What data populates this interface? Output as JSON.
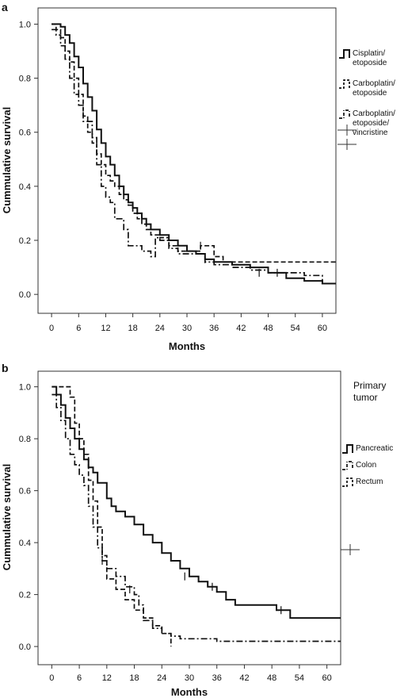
{
  "chart_data": [
    {
      "panel_label": "a",
      "type": "line",
      "step": true,
      "xlabel": "Months",
      "ylabel": "Cummulative survival",
      "xlim": [
        -3,
        63
      ],
      "ylim": [
        -0.07,
        1.06
      ],
      "xticks": [
        0,
        6,
        12,
        18,
        24,
        30,
        36,
        42,
        48,
        54,
        60
      ],
      "yticks": [
        0.0,
        0.2,
        0.4,
        0.6,
        0.8,
        1.0
      ],
      "ytick_labels": [
        "0.0",
        "0.2",
        "0.4",
        "0.6",
        "0.8",
        "1.0"
      ],
      "legend_position": "right",
      "series": [
        {
          "name": "Cisplatin/ etoposide",
          "legend_lines": [
            "Cisplatin/",
            "etoposide"
          ],
          "style": "solid",
          "color": "#111111",
          "points": [
            [
              0,
              1.0
            ],
            [
              2,
              0.99
            ],
            [
              3,
              0.96
            ],
            [
              4,
              0.93
            ],
            [
              5,
              0.88
            ],
            [
              6,
              0.84
            ],
            [
              7,
              0.78
            ],
            [
              8,
              0.73
            ],
            [
              9,
              0.68
            ],
            [
              10,
              0.61
            ],
            [
              11,
              0.56
            ],
            [
              12,
              0.51
            ],
            [
              13,
              0.48
            ],
            [
              14,
              0.44
            ],
            [
              15,
              0.4
            ],
            [
              16,
              0.37
            ],
            [
              17,
              0.34
            ],
            [
              18,
              0.32
            ],
            [
              19,
              0.3
            ],
            [
              20,
              0.28
            ],
            [
              21,
              0.26
            ],
            [
              22,
              0.24
            ],
            [
              24,
              0.22
            ],
            [
              26,
              0.2
            ],
            [
              28,
              0.18
            ],
            [
              30,
              0.16
            ],
            [
              32,
              0.15
            ],
            [
              34,
              0.13
            ],
            [
              36,
              0.12
            ],
            [
              40,
              0.11
            ],
            [
              44,
              0.1
            ],
            [
              48,
              0.08
            ],
            [
              52,
              0.06
            ],
            [
              56,
              0.05
            ],
            [
              60,
              0.04
            ],
            [
              63,
              0.04
            ]
          ],
          "censored": [
            [
              34,
              0.13
            ],
            [
              46,
              0.08
            ]
          ]
        },
        {
          "name": "Carboplatin/ etoposide",
          "legend_lines": [
            "Carboplatin/",
            "etoposide"
          ],
          "style": "dashed",
          "color": "#111111",
          "points": [
            [
              0,
              1.0
            ],
            [
              1,
              0.98
            ],
            [
              2,
              0.95
            ],
            [
              3,
              0.9
            ],
            [
              4,
              0.86
            ],
            [
              5,
              0.8
            ],
            [
              6,
              0.74
            ],
            [
              7,
              0.66
            ],
            [
              8,
              0.6
            ],
            [
              9,
              0.56
            ],
            [
              10,
              0.52
            ],
            [
              11,
              0.48
            ],
            [
              12,
              0.44
            ],
            [
              13,
              0.42
            ],
            [
              14,
              0.4
            ],
            [
              15,
              0.37
            ],
            [
              16,
              0.35
            ],
            [
              17,
              0.33
            ],
            [
              18,
              0.3
            ],
            [
              19,
              0.28
            ],
            [
              20,
              0.26
            ],
            [
              21,
              0.24
            ],
            [
              22,
              0.22
            ],
            [
              24,
              0.21
            ],
            [
              26,
              0.18
            ],
            [
              28,
              0.16
            ],
            [
              33,
              0.18
            ],
            [
              36,
              0.14
            ],
            [
              38,
              0.12
            ],
            [
              63,
              0.12
            ]
          ],
          "censored": [
            [
              33,
              0.18
            ]
          ]
        },
        {
          "name": "Carboplatin/ etoposide/ vincristine",
          "legend_lines": [
            "Carboplatin/",
            "etoposide/",
            "vincristine"
          ],
          "style": "dashdot",
          "color": "#111111",
          "points": [
            [
              0,
              0.98
            ],
            [
              1,
              0.96
            ],
            [
              2,
              0.92
            ],
            [
              3,
              0.87
            ],
            [
              4,
              0.8
            ],
            [
              5,
              0.74
            ],
            [
              6,
              0.7
            ],
            [
              7,
              0.64
            ],
            [
              9,
              0.58
            ],
            [
              10,
              0.48
            ],
            [
              11,
              0.4
            ],
            [
              12,
              0.36
            ],
            [
              13,
              0.34
            ],
            [
              14,
              0.28
            ],
            [
              16,
              0.24
            ],
            [
              17,
              0.18
            ],
            [
              20,
              0.16
            ],
            [
              22,
              0.14
            ],
            [
              23,
              0.21
            ],
            [
              24,
              0.2
            ],
            [
              26,
              0.17
            ],
            [
              28,
              0.15
            ],
            [
              32,
              0.15
            ],
            [
              34,
              0.12
            ],
            [
              36,
              0.11
            ],
            [
              40,
              0.1
            ],
            [
              44,
              0.09
            ],
            [
              48,
              0.08
            ],
            [
              50,
              0.08
            ],
            [
              56,
              0.07
            ],
            [
              60,
              0.04
            ],
            [
              62,
              0.04
            ]
          ],
          "censored": [
            [
              50,
              0.08
            ]
          ]
        }
      ]
    },
    {
      "panel_label": "b",
      "type": "line",
      "step": true,
      "xlabel": "Months",
      "ylabel": "Cummulative survival",
      "xlim": [
        -3,
        63
      ],
      "ylim": [
        -0.07,
        1.06
      ],
      "xticks": [
        0,
        6,
        12,
        18,
        24,
        30,
        36,
        42,
        48,
        54,
        60
      ],
      "yticks": [
        0.0,
        0.2,
        0.4,
        0.6,
        0.8,
        1.0
      ],
      "ytick_labels": [
        "0.0",
        "0.2",
        "0.4",
        "0.6",
        "0.8",
        "1.0"
      ],
      "legend_title_lines": [
        "Primary",
        "tumor"
      ],
      "legend_position": "right",
      "series": [
        {
          "name": "Pancreatic",
          "legend_lines": [
            "Pancreatic"
          ],
          "style": "solid",
          "color": "#111111",
          "points": [
            [
              0,
              1.0
            ],
            [
              1,
              0.97
            ],
            [
              2,
              0.93
            ],
            [
              3,
              0.88
            ],
            [
              4,
              0.84
            ],
            [
              5,
              0.8
            ],
            [
              6,
              0.76
            ],
            [
              7,
              0.72
            ],
            [
              8,
              0.69
            ],
            [
              9,
              0.67
            ],
            [
              10,
              0.63
            ],
            [
              12,
              0.57
            ],
            [
              13,
              0.54
            ],
            [
              14,
              0.52
            ],
            [
              16,
              0.5
            ],
            [
              18,
              0.47
            ],
            [
              20,
              0.43
            ],
            [
              22,
              0.4
            ],
            [
              24,
              0.36
            ],
            [
              26,
              0.33
            ],
            [
              28,
              0.3
            ],
            [
              30,
              0.27
            ],
            [
              32,
              0.25
            ],
            [
              34,
              0.23
            ],
            [
              36,
              0.21
            ],
            [
              38,
              0.18
            ],
            [
              40,
              0.16
            ],
            [
              42,
              0.16
            ],
            [
              48,
              0.16
            ],
            [
              49,
              0.14
            ],
            [
              52,
              0.11
            ],
            [
              63,
              0.11
            ]
          ],
          "censored": [
            [
              29,
              0.27
            ],
            [
              35,
              0.23
            ],
            [
              50,
              0.14
            ]
          ]
        },
        {
          "name": "Colon",
          "legend_lines": [
            "Colon"
          ],
          "style": "dashdot",
          "color": "#111111",
          "points": [
            [
              0,
              0.97
            ],
            [
              1,
              0.92
            ],
            [
              2,
              0.87
            ],
            [
              3,
              0.8
            ],
            [
              4,
              0.74
            ],
            [
              5,
              0.7
            ],
            [
              6,
              0.66
            ],
            [
              7,
              0.62
            ],
            [
              8,
              0.54
            ],
            [
              9,
              0.46
            ],
            [
              10,
              0.38
            ],
            [
              11,
              0.33
            ],
            [
              12,
              0.3
            ],
            [
              14,
              0.27
            ],
            [
              16,
              0.23
            ],
            [
              18,
              0.2
            ],
            [
              19,
              0.16
            ],
            [
              20,
              0.1
            ],
            [
              22,
              0.07
            ],
            [
              24,
              0.05
            ],
            [
              26,
              0.04
            ],
            [
              28,
              0.03
            ],
            [
              30,
              0.03
            ],
            [
              36,
              0.02
            ],
            [
              63,
              0.02
            ]
          ],
          "censored": [
            [
              11,
              0.33
            ],
            [
              17,
              0.22
            ]
          ]
        },
        {
          "name": "Rectum",
          "legend_lines": [
            "Rectum"
          ],
          "style": "dashed",
          "color": "#111111",
          "points": [
            [
              0,
              1.0
            ],
            [
              2,
              1.0
            ],
            [
              4,
              0.96
            ],
            [
              5,
              0.86
            ],
            [
              6,
              0.8
            ],
            [
              7,
              0.74
            ],
            [
              8,
              0.64
            ],
            [
              9,
              0.56
            ],
            [
              10,
              0.46
            ],
            [
              11,
              0.35
            ],
            [
              12,
              0.26
            ],
            [
              14,
              0.22
            ],
            [
              16,
              0.18
            ],
            [
              18,
              0.14
            ],
            [
              20,
              0.11
            ],
            [
              22,
              0.08
            ],
            [
              24,
              0.05
            ],
            [
              26,
              0.0
            ]
          ],
          "censored": []
        }
      ]
    }
  ]
}
